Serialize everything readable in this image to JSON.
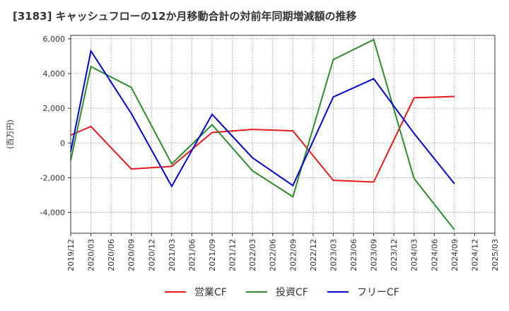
{
  "title": "[3183]  キャッシュフローの12か月移動合計の対前年同期増減額の推移",
  "chart_data": {
    "type": "line",
    "title": "[3183]  キャッシュフローの12か月移動合計の対前年同期増減額の推移",
    "xlabel": "",
    "ylabel": "(百万円)",
    "ylim": [
      -5200,
      6200
    ],
    "yticks": [
      6000,
      4000,
      2000,
      0,
      -2000,
      -4000
    ],
    "ytick_labels": [
      "6,000",
      "4,000",
      "2,000",
      "0",
      "-2,000",
      "-4,000"
    ],
    "x": [
      "2019/12",
      "2020/03",
      "2020/06",
      "2020/09",
      "2020/12",
      "2021/03",
      "2021/06",
      "2021/09",
      "2021/12",
      "2022/03",
      "2022/06",
      "2022/09",
      "2022/12",
      "2023/03",
      "2023/06",
      "2023/09",
      "2023/12",
      "2024/03",
      "2024/06",
      "2024/09",
      "2024/12",
      "2025/03"
    ],
    "grid": true,
    "legend_position": "bottom",
    "series": [
      {
        "name": "営業CF",
        "color": "#e41a1c",
        "values": [
          450,
          950,
          null,
          -1500,
          null,
          -1350,
          null,
          600,
          null,
          780,
          null,
          700,
          null,
          -2150,
          null,
          -2250,
          null,
          2600,
          null,
          2680,
          null,
          null
        ]
      },
      {
        "name": "投資CF",
        "color": "#2e8b2e",
        "values": [
          -1000,
          4400,
          null,
          3200,
          null,
          -1200,
          null,
          1050,
          null,
          -1600,
          null,
          -3100,
          null,
          4800,
          null,
          5950,
          null,
          -2050,
          null,
          -5000,
          null,
          null
        ]
      },
      {
        "name": "フリーCF",
        "color": "#0000cc",
        "values": [
          -500,
          5300,
          null,
          1700,
          null,
          -2500,
          null,
          1650,
          null,
          -850,
          null,
          -2450,
          null,
          2650,
          null,
          3700,
          null,
          550,
          null,
          -2350,
          null,
          null
        ]
      }
    ]
  }
}
